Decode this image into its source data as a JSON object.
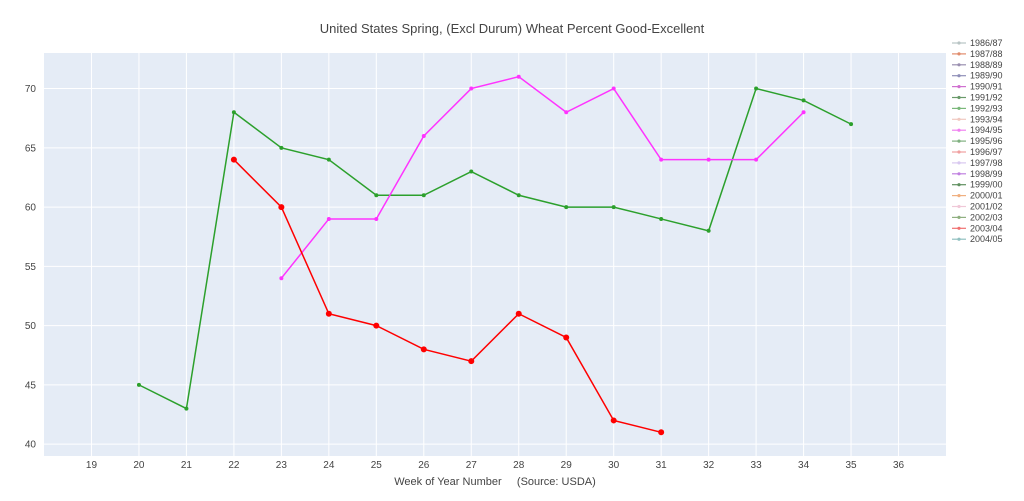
{
  "chart_data": {
    "type": "line",
    "title": "United States Spring, (Excl Durum) Wheat Percent Good-Excellent",
    "xlabel": "Week of Year Number     (Source: USDA)",
    "ylabel": "",
    "xlim": [
      18,
      37
    ],
    "ylim": [
      39,
      73
    ],
    "x_ticks": [
      19,
      20,
      21,
      22,
      23,
      24,
      25,
      26,
      27,
      28,
      29,
      30,
      31,
      32,
      33,
      34,
      35,
      36
    ],
    "y_ticks": [
      40,
      45,
      50,
      55,
      60,
      65,
      70
    ],
    "grid": true,
    "legend_placement": "right",
    "legend": [
      {
        "label": "1986/87",
        "color": "#b8c4c4"
      },
      {
        "label": "1987/88",
        "color": "#e08c6c"
      },
      {
        "label": "1988/89",
        "color": "#9a8fb0"
      },
      {
        "label": "1989/90",
        "color": "#8f8fb8"
      },
      {
        "label": "1990/91",
        "color": "#d070d0"
      },
      {
        "label": "1991/92",
        "color": "#6a9a6a"
      },
      {
        "label": "1992/93",
        "color": "#7ab87a"
      },
      {
        "label": "1993/94",
        "color": "#f0c8c0"
      },
      {
        "label": "1994/95",
        "color": "#f080f0"
      },
      {
        "label": "1995/96",
        "color": "#80b080"
      },
      {
        "label": "1996/97",
        "color": "#f0a0a0"
      },
      {
        "label": "1997/98",
        "color": "#d8c8f0"
      },
      {
        "label": "1998/99",
        "color": "#c080e0"
      },
      {
        "label": "1999/00",
        "color": "#609060"
      },
      {
        "label": "2000/01",
        "color": "#f0b080"
      },
      {
        "label": "2001/02",
        "color": "#f0c8d8"
      },
      {
        "label": "2002/03",
        "color": "#90b080"
      },
      {
        "label": "2003/04",
        "color": "#f07070"
      },
      {
        "label": "2004/05",
        "color": "#90c0c0"
      }
    ],
    "series": [
      {
        "color": "#2ca02c",
        "x": [
          20,
          21,
          22,
          23,
          24,
          25,
          26,
          27,
          28,
          29,
          30,
          31,
          32,
          33,
          34,
          35
        ],
        "y": [
          45,
          43,
          68,
          65,
          64,
          61,
          61,
          63,
          61,
          60,
          60,
          59,
          58,
          70,
          69,
          67
        ]
      },
      {
        "color": "#ff33ff",
        "x": [
          23,
          24,
          25,
          26,
          27,
          28,
          29,
          30,
          31,
          32,
          33,
          34
        ],
        "y": [
          54,
          59,
          59,
          66,
          70,
          71,
          68,
          70,
          64,
          64,
          64,
          68
        ]
      },
      {
        "color": "#ff0000",
        "x": [
          22,
          23,
          24,
          25,
          26,
          27,
          28,
          29,
          30,
          31
        ],
        "y": [
          64,
          60,
          51,
          50,
          48,
          47,
          51,
          49,
          42,
          41
        ]
      }
    ]
  }
}
